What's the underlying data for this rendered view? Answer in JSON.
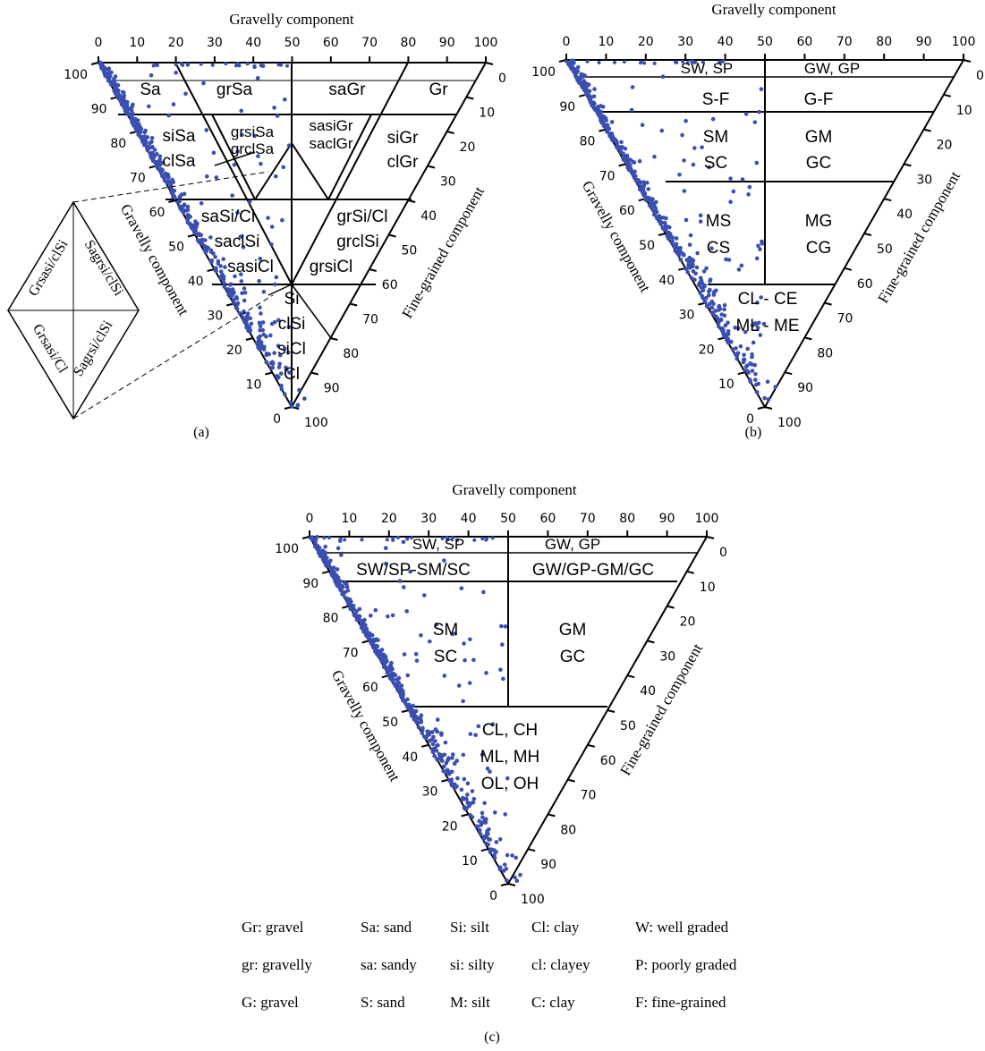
{
  "axes": {
    "top": "Gravelly component",
    "left": "Gravelly component",
    "right": "Fine-grained component"
  },
  "ticks": [
    "0",
    "10",
    "20",
    "30",
    "40",
    "50",
    "60",
    "70",
    "80",
    "90",
    "100"
  ],
  "point_color": "#3a4fb0",
  "panels": [
    {
      "label": "(a)",
      "zones": [
        "Sa",
        "grSa",
        "saGr",
        "Gr",
        "siSa",
        "clSa",
        "grsiSa",
        "grclSa",
        "sasiGr",
        "saclGr",
        "siGr",
        "clGr",
        "saSi/Cl",
        "saclSi",
        "sasiCl",
        "grSi/Cl",
        "grclSi",
        "grsiCl",
        "Si",
        "clSi",
        "siCl",
        "Cl"
      ],
      "diamond": [
        "Grsasi/clSi",
        "Sagrsi/clSi",
        "Grsasi/Cl",
        "Sagrsi/clSi"
      ]
    },
    {
      "label": "(b)",
      "zones": [
        "SW, SP",
        "GW, GP",
        "S-F",
        "G-F",
        "SM",
        "SC",
        "GM",
        "GC",
        "MS",
        "CS",
        "MG",
        "CG",
        "CL - CE",
        "ML - ME"
      ]
    },
    {
      "label": "(c)",
      "zones": [
        "SW, SP",
        "GW, GP",
        "SW/SP-SM/SC",
        "GW/GP-GM/GC",
        "SM",
        "SC",
        "GM",
        "GC",
        "CL, CH",
        "ML, MH",
        "OL, OH"
      ]
    }
  ],
  "legend": [
    [
      "Gr: gravel",
      "Sa: sand",
      "Si: silt",
      "Cl: clay",
      "W: well graded"
    ],
    [
      "gr: gravelly",
      "sa: sandy",
      "si: silty",
      "cl: clayey",
      "P: poorly graded"
    ],
    [
      "G: gravel",
      "S: sand",
      "M: silt",
      "C: clay",
      "F: fine-grained"
    ]
  ]
}
